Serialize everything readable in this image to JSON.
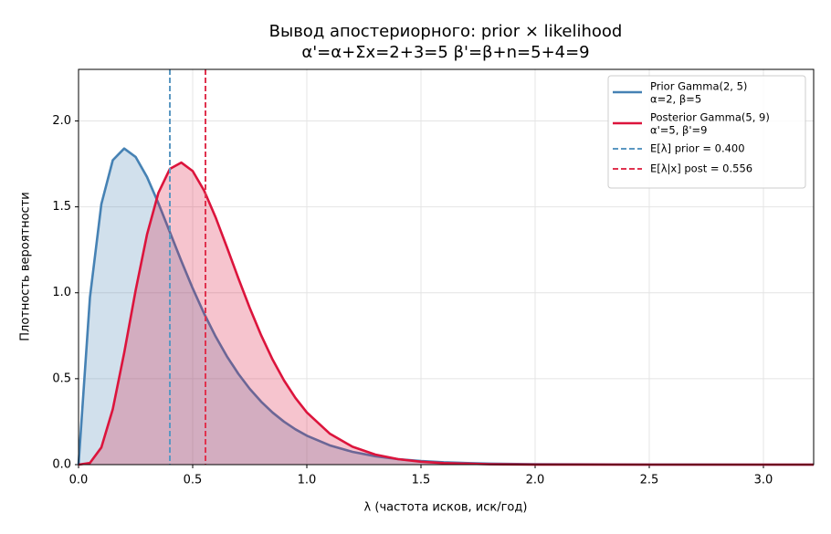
{
  "chart_data": {
    "type": "line",
    "title": "Вывод апостериорного: prior × likelihood",
    "subtitle": "α'=α+Σx=2+3=5   β'=β+n=5+4=9",
    "x_label": "λ (частота исков, иск/год)",
    "y_label": "Плотность вероятности",
    "x": [
      0,
      0.05,
      0.1,
      0.15,
      0.2,
      0.25,
      0.3,
      0.35,
      0.4,
      0.45,
      0.5,
      0.55,
      0.6,
      0.65,
      0.7,
      0.75,
      0.8,
      0.85,
      0.9,
      0.95,
      1.0,
      1.1,
      1.2,
      1.3,
      1.4,
      1.5,
      1.6,
      1.8,
      2.0,
      2.5,
      3.0,
      3.22
    ],
    "series": [
      {
        "name": "Prior Gamma(2, 5)",
        "subname": "α=2, β=5",
        "color": "#4682b4",
        "fill": true,
        "values": [
          0,
          0.9735,
          1.5163,
          1.7715,
          1.8394,
          1.7906,
          1.6735,
          1.5205,
          1.3534,
          1.1858,
          1.026,
          0.879,
          0.7468,
          0.63,
          0.5285,
          0.441,
          0.3663,
          0.3031,
          0.25,
          0.2055,
          0.1684,
          0.1124,
          0.0744,
          0.0489,
          0.0319,
          0.0207,
          0.0134,
          0.0056,
          0.0023,
          0.0002,
          0,
          0
        ]
      },
      {
        "name": "Posterior Gamma(5, 9)",
        "subname": "α'=5, β'=9",
        "color": "#dc143c",
        "fill": true,
        "values": [
          0,
          0.0098,
          0.1,
          0.3229,
          0.6507,
          1.013,
          1.3394,
          1.5821,
          1.7208,
          1.7577,
          1.7083,
          1.5947,
          1.4403,
          1.2649,
          1.0848,
          0.9115,
          0.7524,
          0.6114,
          0.49,
          0.3879,
          0.3036,
          0.1807,
          0.1041,
          0.0583,
          0.0319,
          0.0171,
          0.009,
          0.0024,
          0.0006,
          0,
          0,
          0
        ]
      }
    ],
    "markers": [
      {
        "name": "E[λ] prior = 0.400",
        "x": 0.4,
        "color": "#5b98c2"
      },
      {
        "name": "E[λ|x] post = 0.556",
        "x": 0.556,
        "color": "#e0334f"
      }
    ],
    "xlim": [
      0,
      3.22
    ],
    "ylim": [
      0,
      2.3
    ],
    "xticks": [
      {
        "value": 0,
        "label": "0.0"
      },
      0.5,
      {
        "value": 1,
        "label": "1.0"
      },
      1.5,
      {
        "value": 2,
        "label": "2.0"
      },
      2.5,
      {
        "value": 3,
        "label": "3.0"
      }
    ],
    "yticks": [
      {
        "value": 0,
        "label": "0.0"
      },
      0.5,
      {
        "value": 1,
        "label": "1.0"
      },
      1.5,
      {
        "value": 2,
        "label": "2.0"
      }
    ],
    "grid": true,
    "legend": "upper right"
  }
}
